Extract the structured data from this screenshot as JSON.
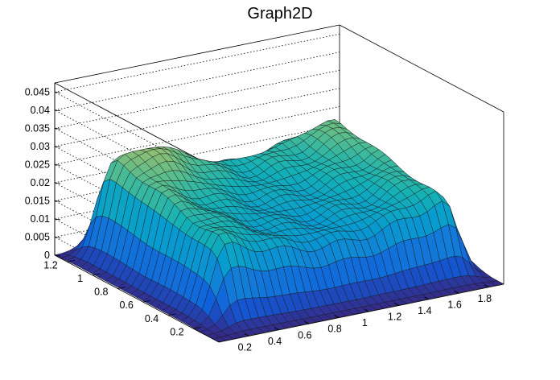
{
  "chart_data": {
    "type": "surface",
    "title": "Graph2D",
    "xlabel": "",
    "ylabel": "",
    "zlabel": "",
    "xlim": [
      0,
      1.9
    ],
    "ylim": [
      0,
      1.3
    ],
    "zlim": [
      0,
      0.0475
    ],
    "x_ticks": [
      "0.2",
      "0.4",
      "0.6",
      "0.8",
      "1",
      "1.2",
      "1.4",
      "1.6",
      "1.8"
    ],
    "y_ticks": [
      "0.2",
      "0.4",
      "0.6",
      "0.8",
      "1",
      "1.2"
    ],
    "z_ticks": [
      "0",
      "0.005",
      "0.01",
      "0.015",
      "0.02",
      "0.025",
      "0.03",
      "0.035",
      "0.04",
      "0.045"
    ],
    "colormap": "parula (blue-teal-green-yellow)",
    "grid": true,
    "background_color": "#ffffff"
  }
}
